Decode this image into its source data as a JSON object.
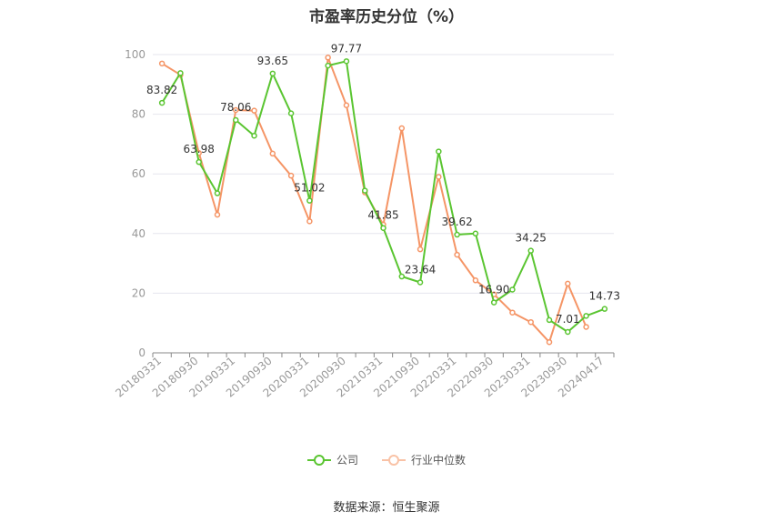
{
  "chart_data": {
    "type": "line",
    "title": "市盈率历史分位（%）",
    "xlabel": "",
    "ylabel": "",
    "ylim": [
      0,
      100
    ],
    "yticks": [
      0,
      20,
      40,
      60,
      80,
      100
    ],
    "grid": true,
    "legend_position": "bottom",
    "categories": [
      "20180331",
      "20180630",
      "20180930",
      "20181231",
      "20190331",
      "20190630",
      "20190930",
      "20191231",
      "20200331",
      "20200630",
      "20200930",
      "20201231",
      "20210331",
      "20210630",
      "20210930",
      "20211231",
      "20220331",
      "20220630",
      "20220930",
      "20221231",
      "20230331",
      "20230630",
      "20230930",
      "20231231",
      "20240417"
    ],
    "tick_labels": [
      "20180331",
      "20180930",
      "20190331",
      "20190930",
      "20200331",
      "20200930",
      "20210331",
      "20210930",
      "20220331",
      "20220930",
      "20230331",
      "20230930",
      "20240417"
    ],
    "series": [
      {
        "name": "公司",
        "color": "#5ac531",
        "values": [
          83.82,
          93.8,
          63.98,
          53.5,
          78.06,
          72.8,
          93.65,
          80.3,
          51.02,
          96.3,
          97.77,
          54.4,
          41.85,
          25.6,
          23.64,
          67.5,
          39.62,
          40.0,
          16.9,
          21.2,
          34.25,
          11.0,
          7.01,
          12.4,
          14.73
        ]
      },
      {
        "name": "行业中位数",
        "color": "#f59566",
        "values": [
          97.0,
          93.2,
          67.0,
          46.3,
          81.4,
          81.2,
          66.8,
          59.4,
          44.1,
          99.0,
          83.0,
          53.8,
          43.0,
          75.3,
          34.7,
          59.0,
          32.9,
          24.3,
          19.6,
          13.5,
          10.3,
          3.6,
          23.2,
          8.7,
          null
        ]
      }
    ],
    "data_labels": [
      {
        "series": 0,
        "index": 0,
        "text": "83.82"
      },
      {
        "series": 0,
        "index": 2,
        "text": "63.98"
      },
      {
        "series": 0,
        "index": 4,
        "text": "78.06"
      },
      {
        "series": 0,
        "index": 6,
        "text": "93.65"
      },
      {
        "series": 0,
        "index": 8,
        "text": "51.02"
      },
      {
        "series": 0,
        "index": 10,
        "text": "97.77"
      },
      {
        "series": 0,
        "index": 12,
        "text": "41.85"
      },
      {
        "series": 0,
        "index": 14,
        "text": "23.64"
      },
      {
        "series": 0,
        "index": 16,
        "text": "39.62"
      },
      {
        "series": 0,
        "index": 18,
        "text": "16.90"
      },
      {
        "series": 0,
        "index": 20,
        "text": "34.25"
      },
      {
        "series": 0,
        "index": 22,
        "text": "7.01"
      },
      {
        "series": 0,
        "index": 24,
        "text": "14.73"
      }
    ],
    "source": "数据来源：恒生聚源"
  }
}
